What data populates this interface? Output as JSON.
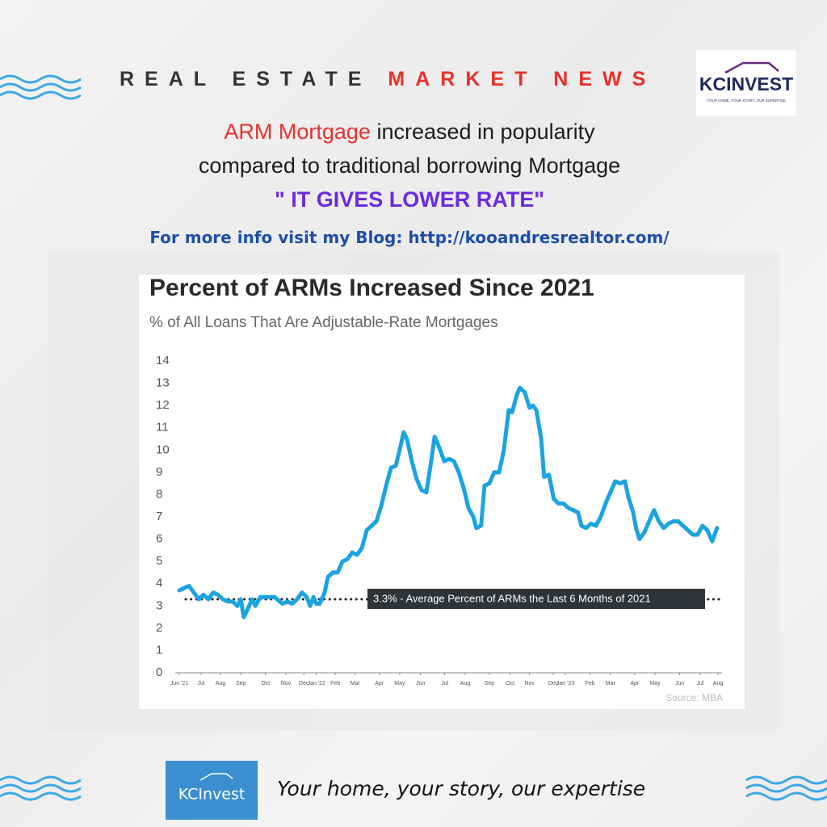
{
  "header": {
    "title_part1": "REAL ESTATE",
    "title_part2": "MARKET NEWS"
  },
  "logo": {
    "name": "KCINVEST",
    "tagline": "YOUR HOME, YOUR STORY, OUR EXPERTISE"
  },
  "headline": {
    "highlight": "ARM Mortgage",
    "line1_rest": "increased in popularity",
    "line2": "compared to traditional borrowing Mortgage",
    "emphasis": "\" IT GIVES LOWER RATE\""
  },
  "blog_line": "For more info visit my Blog: http://kooandresrealtor.com/",
  "chart_data": {
    "type": "line",
    "title": "Percent of ARMs Increased Since 2021",
    "subtitle": "% of All Loans That Are Adjustable-Rate Mortgages",
    "source": "Source: MBA",
    "color": "#1ba3e2",
    "x": [
      0,
      1,
      2,
      3,
      4,
      5,
      6,
      7,
      8,
      9,
      10,
      11,
      12,
      12.7,
      13.3,
      14,
      15,
      15.7,
      16.7,
      17.7,
      18.7,
      19.7,
      20.7,
      21.3,
      22.3,
      23.3,
      24.3,
      25.3,
      26.3,
      27,
      27.7,
      28.3,
      29,
      30,
      30.7,
      31.7,
      32.7,
      33.7,
      34.7,
      35.7,
      36.7,
      37.7,
      38.7,
      39.7,
      40.7,
      41.7,
      42.7,
      43.7,
      44.7,
      45.7,
      46.3,
      47,
      48,
      49,
      50,
      51,
      52,
      52.7,
      53.7,
      54.7,
      55.7,
      56.7,
      57.7,
      58.7,
      59.7,
      60.7,
      61.3,
      62.3,
      63,
      64,
      65,
      66,
      67,
      68,
      68.7,
      69.7,
      70.3,
      71.3,
      72.3,
      73,
      73.7,
      74.7,
      75.3,
      76.3,
      77.3,
      78.3,
      79.3,
      80.3,
      81.3,
      82.3,
      83,
      84,
      85,
      86,
      87,
      88,
      89,
      90,
      91,
      92,
      92.7,
      93.7,
      94.3,
      95,
      96,
      97,
      98,
      99,
      100,
      101,
      102,
      103,
      104,
      105,
      106,
      107,
      108,
      109,
      110,
      111
    ],
    "values": [
      3.7,
      3.8,
      3.9,
      3.6,
      3.3,
      3.5,
      3.3,
      3.6,
      3.5,
      3.3,
      3.2,
      3.2,
      3.0,
      3.3,
      2.5,
      2.8,
      3.3,
      3.0,
      3.4,
      3.4,
      3.4,
      3.4,
      3.2,
      3.1,
      3.2,
      3.1,
      3.3,
      3.6,
      3.4,
      3.0,
      3.4,
      3.1,
      3.1,
      3.6,
      4.3,
      4.5,
      4.5,
      5.0,
      5.1,
      5.4,
      5.3,
      5.6,
      6.4,
      6.6,
      6.8,
      7.5,
      8.4,
      9.2,
      9.3,
      10.2,
      10.8,
      10.5,
      9.5,
      8.7,
      8.2,
      8.1,
      9.5,
      10.6,
      10.1,
      9.5,
      9.6,
      9.5,
      9.0,
      8.3,
      7.4,
      7.0,
      6.5,
      6.6,
      8.4,
      8.5,
      9.0,
      9.0,
      10.0,
      11.8,
      11.7,
      12.5,
      12.8,
      12.6,
      11.9,
      12.0,
      11.8,
      10.5,
      8.8,
      8.9,
      7.8,
      7.6,
      7.6,
      7.4,
      7.3,
      7.2,
      6.6,
      6.5,
      6.7,
      6.6,
      7.0,
      7.6,
      8.1,
      8.6,
      8.5,
      8.6,
      7.9,
      7.2,
      6.5,
      6.0,
      6.3,
      6.8,
      7.3,
      6.8,
      6.5,
      6.7,
      6.8,
      6.8,
      6.6,
      6.4,
      6.2,
      6.2,
      6.6,
      6.4,
      5.9,
      6.5
    ],
    "xlim": [
      0,
      111.2
    ],
    "xticks": [
      {
        "value": 0,
        "label": "Jun '21"
      },
      {
        "value": 4.5,
        "label": "Jul"
      },
      {
        "value": 8.5,
        "label": "Aug"
      },
      {
        "value": 12.7,
        "label": "Sep"
      },
      {
        "value": 17.8,
        "label": "Oct"
      },
      {
        "value": 22,
        "label": "Nov"
      },
      {
        "value": 25.7,
        "label": "Dec"
      },
      {
        "value": 28.3,
        "label": "Jan '22"
      },
      {
        "value": 32.2,
        "label": "Feb"
      },
      {
        "value": 36.3,
        "label": "Mar"
      },
      {
        "value": 41.3,
        "label": "Apr"
      },
      {
        "value": 45.5,
        "label": "May"
      },
      {
        "value": 49.8,
        "label": "Jun"
      },
      {
        "value": 54.8,
        "label": "Jul"
      },
      {
        "value": 59,
        "label": "Aug"
      },
      {
        "value": 64,
        "label": "Sep"
      },
      {
        "value": 68.3,
        "label": "Oct"
      },
      {
        "value": 72.3,
        "label": "Nov"
      },
      {
        "value": 77.2,
        "label": "Dec"
      },
      {
        "value": 79.7,
        "label": "Jan '23"
      },
      {
        "value": 84.8,
        "label": "Feb"
      },
      {
        "value": 89,
        "label": "Mar"
      },
      {
        "value": 94,
        "label": "Apr"
      },
      {
        "value": 98.2,
        "label": "May"
      },
      {
        "value": 103.3,
        "label": "Jun"
      },
      {
        "value": 107.5,
        "label": "Jul"
      },
      {
        "value": 111.2,
        "label": "Aug"
      }
    ],
    "ylim": [
      0,
      14
    ],
    "yticks": [
      0,
      1,
      2,
      3,
      4,
      5,
      6,
      7,
      8,
      9,
      10,
      11,
      12,
      13,
      14
    ],
    "reference_line": {
      "value": 3.3,
      "label": "3.3% - Average Percent of ARMs the Last 6 Months of 2021"
    }
  },
  "footer": {
    "logo_name": "KCInvest",
    "tagline": "Your home, your story, our expertise"
  }
}
